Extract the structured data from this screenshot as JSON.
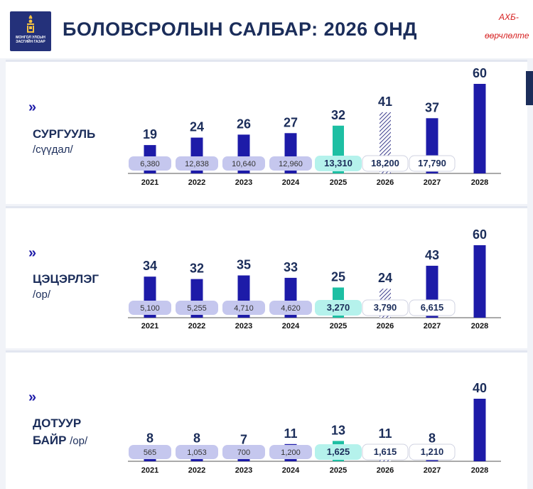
{
  "header": {
    "logo_text": [
      "МОНГОЛ УЛСЫН",
      "ЗАСГИЙН ГАЗАР"
    ],
    "title": "БОЛОВСРОЛЫН САЛБАР: 2026 ОНД",
    "corner_line1": "АХБ-",
    "corner_line2": "өөрчлөлте"
  },
  "colors": {
    "bar": "#1d1ba8",
    "highlight": "#1dbfa3",
    "hatch": "#3b3d8c",
    "text": "#1b2d5a",
    "pill": "#c5c7ee"
  },
  "sections": [
    {
      "chevron": "»",
      "label": "СУРГУУЛЬ",
      "unit": "/сүүдал/"
    },
    {
      "chevron": "»",
      "label": "ЦЭЦЭРЛЭГ",
      "unit": "/ор/"
    },
    {
      "chevron": "»",
      "label": "ДОТУУР",
      "label2": "БАЙР",
      "unit": "/ор/"
    }
  ],
  "chart_data": [
    {
      "type": "bar",
      "categories": [
        "2021",
        "2022",
        "2023",
        "2024",
        "2025",
        "2026",
        "2027",
        "2028"
      ],
      "values": [
        19,
        24,
        26,
        27,
        32,
        41,
        37,
        60
      ],
      "secondary_values": [
        "6,380",
        "12,838",
        "10,640",
        "12,960",
        "13,310",
        "18,200",
        "17,790",
        ""
      ],
      "styles": [
        "solid",
        "solid",
        "solid",
        "solid",
        "highlight",
        "hatched",
        "solid",
        "solid"
      ]
    },
    {
      "type": "bar",
      "categories": [
        "2021",
        "2022",
        "2023",
        "2024",
        "2025",
        "2026",
        "2027",
        "2028"
      ],
      "values": [
        34,
        32,
        35,
        33,
        25,
        24,
        43,
        60
      ],
      "secondary_values": [
        "5,100",
        "5,255",
        "4,710",
        "4,620",
        "3,270",
        "3,790",
        "6,615",
        ""
      ],
      "styles": [
        "solid",
        "solid",
        "solid",
        "solid",
        "highlight",
        "hatched",
        "solid",
        "solid"
      ]
    },
    {
      "type": "bar",
      "categories": [
        "2021",
        "2022",
        "2023",
        "2024",
        "2025",
        "2026",
        "2027",
        "2028"
      ],
      "values": [
        8,
        8,
        7,
        11,
        13,
        11,
        8,
        40
      ],
      "secondary_values": [
        "565",
        "1,053",
        "700",
        "1,200",
        "1,625",
        "1,615",
        "1,210",
        ""
      ],
      "styles": [
        "solid",
        "solid",
        "solid",
        "solid",
        "highlight",
        "hatched",
        "solid",
        "solid"
      ]
    }
  ]
}
